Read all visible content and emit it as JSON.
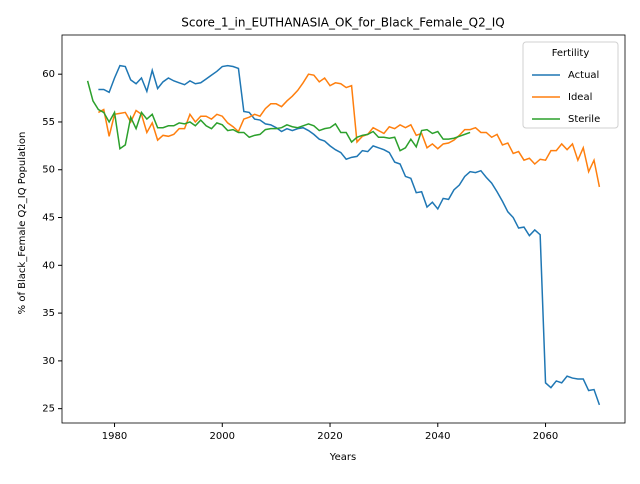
{
  "chart_data": {
    "type": "line",
    "title": "Score_1_in_EUTHANASIA_OK_for_Black_Female_Q2_IQ",
    "x_label": "Years",
    "y_label": "% of Black_Female Q2_IQ Population",
    "legend_title": "Fertility",
    "legend_position": "upper right",
    "x": [
      1975,
      1976,
      1977,
      1978,
      1979,
      1980,
      1981,
      1982,
      1983,
      1984,
      1985,
      1986,
      1987,
      1988,
      1989,
      1990,
      1991,
      1992,
      1993,
      1994,
      1995,
      1996,
      1997,
      1998,
      1999,
      2000,
      2001,
      2002,
      2003,
      2004,
      2005,
      2006,
      2007,
      2008,
      2009,
      2010,
      2011,
      2012,
      2013,
      2014,
      2015,
      2016,
      2017,
      2018,
      2019,
      2020,
      2021,
      2022,
      2023,
      2024,
      2025,
      2026,
      2027,
      2028,
      2029,
      2030,
      2031,
      2032,
      2033,
      2034,
      2035,
      2036,
      2037,
      2038,
      2039,
      2040,
      2041,
      2042,
      2043,
      2044,
      2045,
      2046,
      2047,
      2048,
      2049,
      2050,
      2051,
      2052,
      2053,
      2054,
      2055,
      2056,
      2057,
      2058,
      2059,
      2060,
      2061,
      2062,
      2063,
      2064,
      2065,
      2066,
      2067,
      2068,
      2069,
      2070
    ],
    "series": [
      {
        "name": "Actual",
        "color": "#1f77b4",
        "values": [
          null,
          null,
          58.4,
          58.4,
          58.1,
          59.6,
          60.9,
          60.8,
          59.4,
          59.0,
          59.6,
          58.2,
          60.4,
          58.5,
          59.2,
          59.6,
          59.3,
          59.1,
          58.9,
          59.3,
          59.0,
          59.1,
          59.5,
          59.9,
          60.3,
          60.8,
          60.9,
          60.8,
          60.6,
          56.1,
          56.0,
          55.3,
          55.2,
          54.8,
          54.7,
          54.4,
          54.0,
          54.3,
          54.1,
          54.3,
          54.4,
          54.1,
          53.7,
          53.2,
          53.0,
          52.5,
          52.1,
          51.8,
          51.1,
          51.3,
          51.4,
          52.0,
          51.9,
          52.5,
          52.3,
          52.1,
          51.8,
          50.8,
          50.6,
          49.3,
          49.1,
          47.6,
          47.7,
          46.1,
          46.6,
          45.9,
          47.0,
          46.9,
          47.9,
          48.4,
          49.3,
          49.8,
          49.7,
          49.9,
          49.2,
          48.6,
          47.7,
          46.7,
          45.6,
          45.0,
          43.9,
          44.0,
          43.1,
          43.7,
          43.2,
          27.7,
          27.2,
          27.9,
          27.7,
          28.4,
          28.2,
          28.1,
          28.1,
          26.9,
          27.0,
          25.4
        ]
      },
      {
        "name": "Ideal",
        "color": "#ff7f0e",
        "values": [
          null,
          null,
          56.0,
          56.3,
          53.5,
          55.8,
          55.9,
          56.0,
          55.0,
          56.2,
          55.8,
          53.9,
          54.9,
          53.1,
          53.6,
          53.5,
          53.7,
          54.3,
          54.3,
          55.8,
          55.0,
          55.6,
          55.6,
          55.3,
          55.8,
          55.6,
          54.9,
          54.5,
          54.0,
          55.3,
          55.5,
          55.8,
          55.6,
          56.4,
          56.9,
          56.9,
          56.6,
          57.2,
          57.7,
          58.3,
          59.1,
          60.0,
          59.9,
          59.2,
          59.6,
          58.8,
          59.1,
          59.0,
          58.6,
          58.8,
          52.9,
          53.5,
          53.7,
          54.4,
          54.1,
          53.8,
          54.5,
          54.3,
          54.7,
          54.4,
          54.7,
          53.6,
          53.8,
          52.3,
          52.7,
          52.2,
          52.7,
          52.8,
          53.1,
          53.6,
          54.2,
          54.2,
          54.4,
          53.9,
          53.9,
          53.4,
          53.7,
          52.6,
          52.8,
          51.7,
          51.9,
          51.0,
          51.2,
          50.6,
          51.1,
          51.0,
          52.0,
          52.0,
          52.7,
          52.1,
          52.7,
          51.0,
          52.3,
          49.8,
          51.0,
          48.2
        ]
      },
      {
        "name": "Sterile",
        "color": "#2ca02c",
        "values": [
          59.3,
          57.2,
          56.3,
          56.0,
          55.0,
          56.0,
          52.2,
          52.6,
          55.5,
          54.3,
          56.0,
          55.3,
          55.8,
          54.4,
          54.4,
          54.6,
          54.6,
          54.9,
          54.8,
          55.0,
          54.6,
          55.2,
          54.6,
          54.3,
          54.9,
          54.7,
          54.1,
          54.2,
          53.9,
          53.9,
          53.4,
          53.6,
          53.7,
          54.2,
          54.3,
          54.3,
          54.4,
          54.7,
          54.5,
          54.4,
          54.6,
          54.8,
          54.6,
          54.1,
          54.3,
          54.4,
          54.8,
          53.9,
          53.9,
          52.9,
          53.4,
          53.6,
          53.7,
          54.0,
          53.4,
          53.4,
          53.3,
          53.4,
          52.0,
          52.3,
          53.2,
          52.4,
          54.1,
          54.2,
          53.8,
          54.0,
          53.2,
          53.2,
          53.3,
          53.5,
          53.7,
          53.9,
          null,
          null,
          null,
          null,
          null,
          null,
          null,
          null,
          null,
          null,
          null,
          null,
          null,
          null,
          null,
          null,
          null,
          null,
          null,
          null,
          null,
          null,
          null,
          null
        ]
      }
    ],
    "xlim": [
      1970.25,
      2074.75
    ],
    "ylim": [
      23.5,
      64.1
    ],
    "xticks": [
      1980,
      2000,
      2020,
      2040,
      2060
    ],
    "yticks": [
      25,
      30,
      35,
      40,
      45,
      50,
      55,
      60
    ]
  }
}
